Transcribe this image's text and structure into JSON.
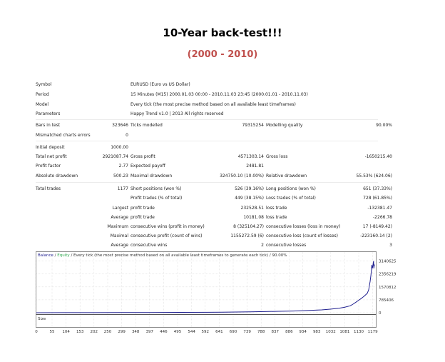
{
  "header": {
    "title": "10-Year back-test!!!",
    "subtitle": "(2000 - 2010)"
  },
  "report": {
    "info": [
      {
        "label": "Symbol",
        "value": "EURUSD (Euro vs US Dollar)"
      },
      {
        "label": "Period",
        "value": "15 Minutes (M15) 2000.01.03 00:00 - 2010.11.03 23:45 (2000.01.01 - 2010.11.03)"
      },
      {
        "label": "Model",
        "value": "Every tick (the most precise method based on all available least timeframes)"
      },
      {
        "label": "Parameters",
        "value": "Happy Trend v1.0 | 2013 All rights reserved"
      }
    ],
    "bars_in_test": {
      "label": "Bars in test",
      "value": "323646"
    },
    "ticks_modelled": {
      "label": "Ticks modelled",
      "value": "79315254"
    },
    "modelling_quality": {
      "label": "Modelling quality",
      "value": "90.00%"
    },
    "mismatched": {
      "label": "Mismatched charts errors",
      "value": "0"
    },
    "initial_deposit": {
      "label": "Initial deposit",
      "value": "1000.00"
    },
    "total_net_profit": {
      "label": "Total net profit",
      "value": "2921087.74"
    },
    "gross_profit": {
      "label": "Gross profit",
      "value": "4571303.14"
    },
    "gross_loss": {
      "label": "Gross loss",
      "value": "-1650215.40"
    },
    "profit_factor": {
      "label": "Profit factor",
      "value": "2.77"
    },
    "expected_payoff": {
      "label": "Expected payoff",
      "value": "2481.81"
    },
    "absolute_drawdown": {
      "label": "Absolute drawdown",
      "value": "500.23"
    },
    "maximal_drawdown": {
      "label": "Maximal drawdown",
      "value": "324750.10 (10.00%)"
    },
    "relative_drawdown": {
      "label": "Relative drawdown",
      "value": "55.53% (624.06)"
    },
    "total_trades": {
      "label": "Total trades",
      "value": "1177"
    },
    "short_positions": {
      "label": "Short positions (won %)",
      "value": "526 (39.16%)"
    },
    "long_positions": {
      "label": "Long positions (won %)",
      "value": "651 (37.33%)"
    },
    "profit_trades": {
      "label": "Profit trades (% of total)",
      "value": "449 (38.15%)"
    },
    "loss_trades": {
      "label": "Loss trades (% of total)",
      "value": "728 (61.85%)"
    },
    "largest": {
      "prefix": "Largest",
      "profit_label": "profit trade",
      "profit_value": "232528.51",
      "loss_label": "loss trade",
      "loss_value": "-132381.47"
    },
    "average": {
      "prefix": "Average",
      "profit_label": "profit trade",
      "profit_value": "10181.08",
      "loss_label": "loss trade",
      "loss_value": "-2266.78"
    },
    "maximum": {
      "prefix": "Maximum",
      "profit_label": "consecutive wins (profit in money)",
      "profit_value": "8 (325104.27)",
      "loss_label": "consecutive losses (loss in money)",
      "loss_value": "17 (-8149.42)"
    },
    "maximal": {
      "prefix": "Maximal",
      "profit_label": "consecutive profit (count of wins)",
      "profit_value": "1155272.59 (6)",
      "loss_label": "consecutive loss (count of losses)",
      "loss_value": "-223160.14 (2)"
    },
    "average_cons": {
      "prefix": "Average",
      "profit_label": "consecutive wins",
      "profit_value": "2",
      "loss_label": "consecutive losses",
      "loss_value": "3"
    }
  },
  "chart_data": {
    "type": "line",
    "legend_prefix_balance": "Balance",
    "legend_sep": " / ",
    "legend_prefix_equity": "Equity",
    "legend_text": " / Every tick (the most precise method based on all available least timeframes to generate each tick) / 90.00%",
    "size_label": "Size",
    "y_ticks": [
      "3140625",
      "2356219",
      "1570812",
      "785406",
      "0"
    ],
    "ylim": [
      0,
      3300000
    ],
    "x_ticks": [
      "0",
      "55",
      "104",
      "153",
      "202",
      "250",
      "299",
      "348",
      "397",
      "446",
      "495",
      "544",
      "592",
      "641",
      "690",
      "739",
      "788",
      "837",
      "886",
      "934",
      "983",
      "1032",
      "1081",
      "1130",
      "1179"
    ],
    "xlim": [
      0,
      1190
    ],
    "balance": [
      [
        0,
        1000
      ],
      [
        100,
        3000
      ],
      [
        200,
        6000
      ],
      [
        300,
        9000
      ],
      [
        400,
        14000
      ],
      [
        500,
        20000
      ],
      [
        600,
        28000
      ],
      [
        650,
        36000
      ],
      [
        700,
        45000
      ],
      [
        750,
        55000
      ],
      [
        800,
        68000
      ],
      [
        850,
        85000
      ],
      [
        900,
        105000
      ],
      [
        950,
        135000
      ],
      [
        1000,
        175000
      ],
      [
        1030,
        215000
      ],
      [
        1060,
        270000
      ],
      [
        1080,
        330000
      ],
      [
        1100,
        420000
      ],
      [
        1110,
        520000
      ],
      [
        1120,
        640000
      ],
      [
        1130,
        760000
      ],
      [
        1140,
        880000
      ],
      [
        1150,
        1020000
      ],
      [
        1160,
        1180000
      ],
      [
        1165,
        1400000
      ],
      [
        1170,
        1900000
      ],
      [
        1173,
        2300000
      ],
      [
        1176,
        2900000
      ],
      [
        1178,
        2700000
      ],
      [
        1180,
        2920000
      ],
      [
        1182,
        3140000
      ],
      [
        1183,
        2700000
      ],
      [
        1185,
        2930000
      ]
    ],
    "colors": {
      "balance": "#1f1f8f",
      "equity": "#2fa84f",
      "grid": "#d9d9d9",
      "border": "#8a8a8a"
    }
  }
}
